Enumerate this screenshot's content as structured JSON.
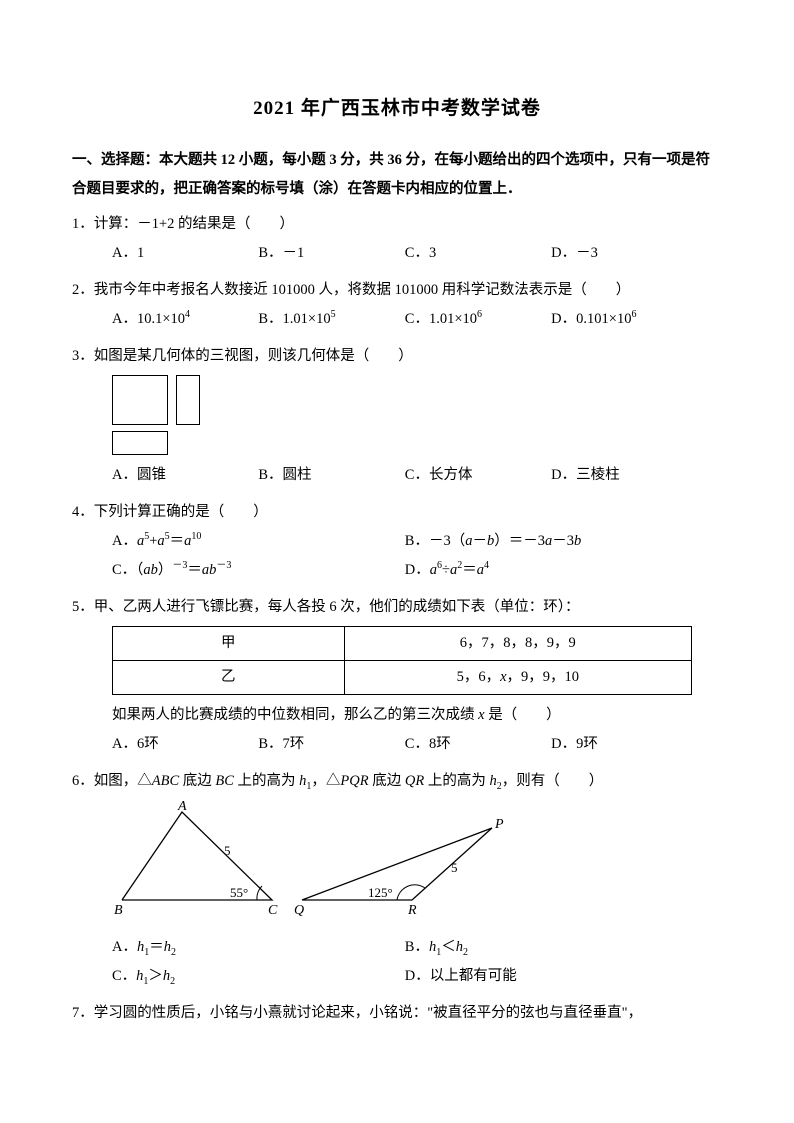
{
  "title": "2021 年广西玉林市中考数学试卷",
  "section1": "一、选择题：本大题共 12 小题，每小题 3 分，共 36 分，在每小题给出的四个选项中，只有一项是符合题目要求的，把正确答案的标号填（涂）在答题卡内相应的位置上．",
  "q1": {
    "text": "1．计算：－1+2 的结果是（　　）",
    "a": "A．1",
    "b": "B．－1",
    "c": "C．3",
    "d": "D．－3"
  },
  "q2": {
    "text": "2．我市今年中考报名人数接近 101000 人，将数据 101000 用科学记数法表示是（　　）",
    "a_pre": "A．10.1×10",
    "a_sup": "4",
    "b_pre": "B．1.01×10",
    "b_sup": "5",
    "c_pre": "C．1.01×10",
    "c_sup": "6",
    "d_pre": "D．0.101×10",
    "d_sup": "6"
  },
  "q3": {
    "text": "3．如图是某几何体的三视图，则该几何体是（　　）",
    "a": "A．圆锥",
    "b": "B．圆柱",
    "c": "C．长方体",
    "d": "D．三棱柱"
  },
  "q4": {
    "text": "4．下列计算正确的是（　　）",
    "a_html": "A．<i>a</i><sup>5</sup>+<i>a</i><sup>5</sup>＝<i>a</i><sup>10</sup>",
    "b_html": "B．－3（<i>a</i>－<i>b</i>）＝－3<i>a</i>－3<i>b</i>",
    "c_html": "C．（<i>ab</i>）<sup>－3</sup>＝<i>ab</i><sup>－3</sup>",
    "d_html": "D．<i>a</i><sup>6</sup>÷<i>a</i><sup>2</sup>＝<i>a</i><sup>4</sup>"
  },
  "q5": {
    "text": "5．甲、乙两人进行飞镖比赛，每人各投 6 次，他们的成绩如下表（单位：环）：",
    "table": {
      "r1c1": "甲",
      "r1c2": "6，7，8，8，9，9",
      "r2c1": "乙",
      "r2c2_html": "5，6，<i>x</i>，9，9，10"
    },
    "after_html": "如果两人的比赛成绩的中位数相同，那么乙的第三次成绩 <i>x</i> 是（　　）",
    "a": "A．6环",
    "b": "B．7环",
    "c": "C．8环",
    "d": "D．9环"
  },
  "q6": {
    "text_html": "6．如图，△<i>ABC</i> 底边 <i>BC</i> 上的高为 <i>h</i><sub>1</sub>，△<i>PQR</i> 底边 <i>QR</i> 上的高为 <i>h</i><sub>2</sub>，则有（　　）",
    "a_html": "A．<i>h</i><sub>1</sub>＝<i>h</i><sub>2</sub>",
    "b_html": "B．<i>h</i><sub>1</sub>＜<i>h</i><sub>2</sub>",
    "c_html": "C．<i>h</i><sub>1</sub>＞<i>h</i><sub>2</sub>",
    "d_html": "D．以上都有可能",
    "svg": {
      "A": "A",
      "B": "B",
      "C": "C",
      "P": "P",
      "Q": "Q",
      "R": "R",
      "five1": "5",
      "five2": "5",
      "ang1": "55°",
      "ang2": "125°"
    }
  },
  "q7": {
    "text": "7．学习圆的性质后，小铭与小熹就讨论起来，小铭说：\"被直径平分的弦也与直径垂直\"，"
  },
  "colors": {
    "text": "#000000",
    "bg": "#ffffff",
    "border": "#000000"
  }
}
